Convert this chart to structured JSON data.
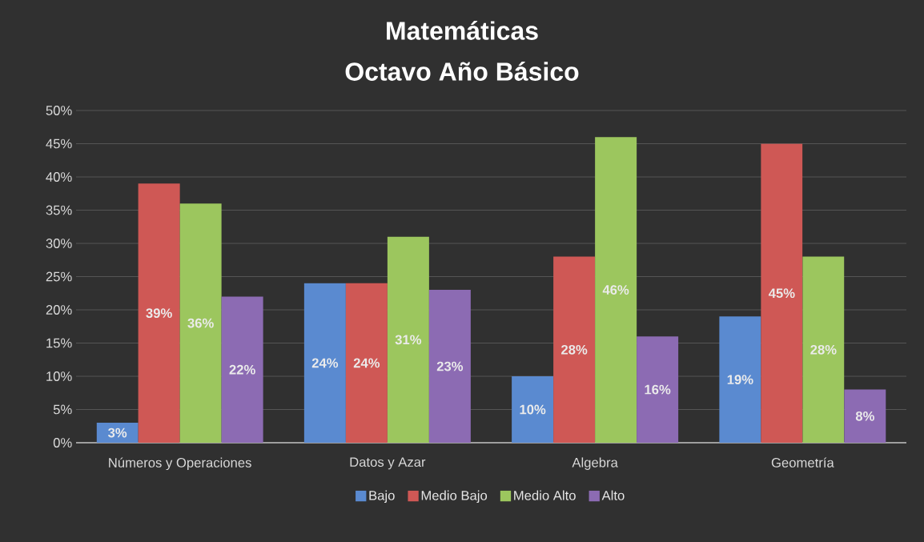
{
  "chart_data": {
    "type": "bar",
    "title": "Matemáticas",
    "subtitle": "Octavo Año Básico",
    "categories": [
      "Números y Operaciones",
      "Datos y Azar",
      "Algebra",
      "Geometría"
    ],
    "series": [
      {
        "name": "Bajo",
        "color": "#5a8ad0",
        "values": [
          3,
          24,
          10,
          19
        ],
        "value_labels": [
          "3%",
          "24%",
          "10%",
          "19%"
        ]
      },
      {
        "name": "Medio Bajo",
        "color": "#cf5855",
        "values": [
          39,
          24,
          28,
          45
        ],
        "value_labels": [
          "39%",
          "24%",
          "28%",
          "45%"
        ]
      },
      {
        "name": "Medio Alto",
        "color": "#9cc65e",
        "values": [
          36,
          31,
          46,
          28
        ],
        "value_labels": [
          "36%",
          "31%",
          "46%",
          "28%"
        ]
      },
      {
        "name": "Alto",
        "color": "#8c6bb3",
        "values": [
          22,
          23,
          16,
          8
        ],
        "value_labels": [
          "22%",
          "23%",
          "16%",
          "8%"
        ]
      }
    ],
    "ylim": [
      0,
      50
    ],
    "yticks": [
      {
        "value": 0,
        "label": "0%"
      },
      {
        "value": 5,
        "label": "5%"
      },
      {
        "value": 10,
        "label": "10%"
      },
      {
        "value": 15,
        "label": "15%"
      },
      {
        "value": 20,
        "label": "20%"
      },
      {
        "value": 25,
        "label": "25%"
      },
      {
        "value": 30,
        "label": "30%"
      },
      {
        "value": 35,
        "label": "35%"
      },
      {
        "value": 40,
        "label": "40%"
      },
      {
        "value": 45,
        "label": "45%"
      },
      {
        "value": 50,
        "label": "50%"
      }
    ],
    "grid": "y",
    "legend": "bottom"
  }
}
